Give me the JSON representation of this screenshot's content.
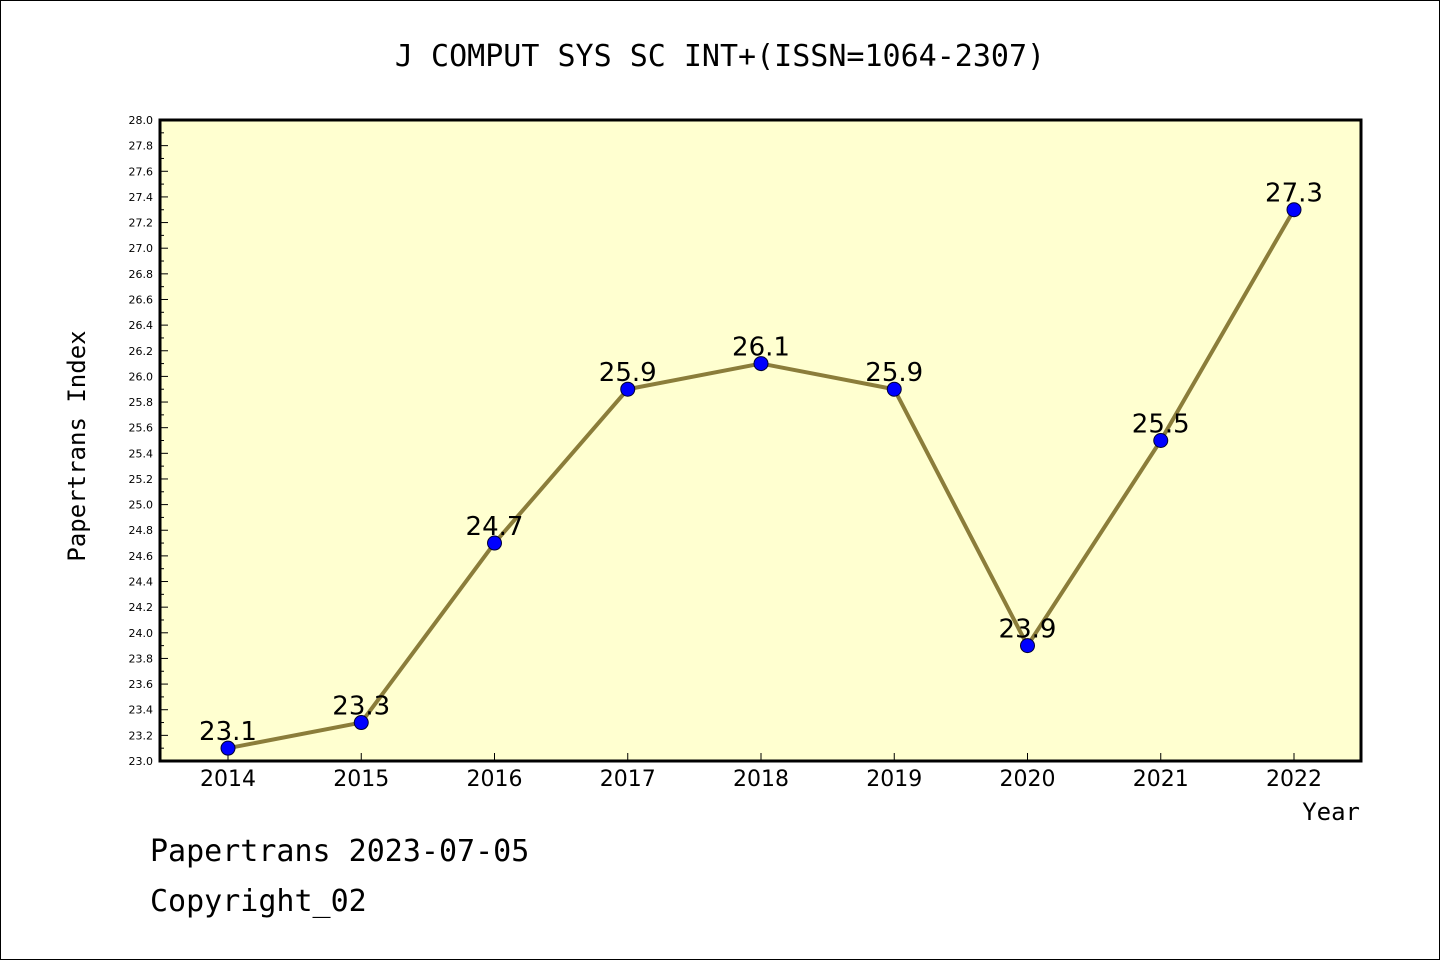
{
  "footer": {
    "line1": "Papertrans 2023-07-05",
    "line2": "Copyright_02"
  },
  "chart_data": {
    "type": "line",
    "title": "J COMPUT SYS SC INT+(ISSN=1064-2307)",
    "xlabel": "Year",
    "ylabel": "Papertrans Index",
    "categories": [
      "2014",
      "2015",
      "2016",
      "2017",
      "2018",
      "2019",
      "2020",
      "2021",
      "2022"
    ],
    "series": [
      {
        "values": [
          23.1,
          23.3,
          24.7,
          25.9,
          26.1,
          25.9,
          23.9,
          25.5,
          27.3
        ],
        "labels": [
          "23.1",
          "23.3",
          "24.7",
          "25.9",
          "26.1",
          "25.9",
          "23.9",
          "25.5",
          "27.3"
        ]
      }
    ],
    "ylim": [
      23.0,
      28.0
    ],
    "yticks": [
      "23.0",
      "23.2",
      "23.4",
      "23.6",
      "23.8",
      "24.0",
      "24.2",
      "24.4",
      "24.6",
      "24.8",
      "25.0",
      "25.2",
      "25.4",
      "25.6",
      "25.8",
      "26.0",
      "26.2",
      "26.4",
      "26.6",
      "26.8",
      "27.0",
      "27.2",
      "27.4",
      "27.6",
      "27.8",
      "28.0"
    ],
    "grid": false,
    "legend": "none",
    "colors": {
      "plot_background": "#ffffd0",
      "line": "#8b7d3a",
      "marker": "#0000ff"
    }
  }
}
